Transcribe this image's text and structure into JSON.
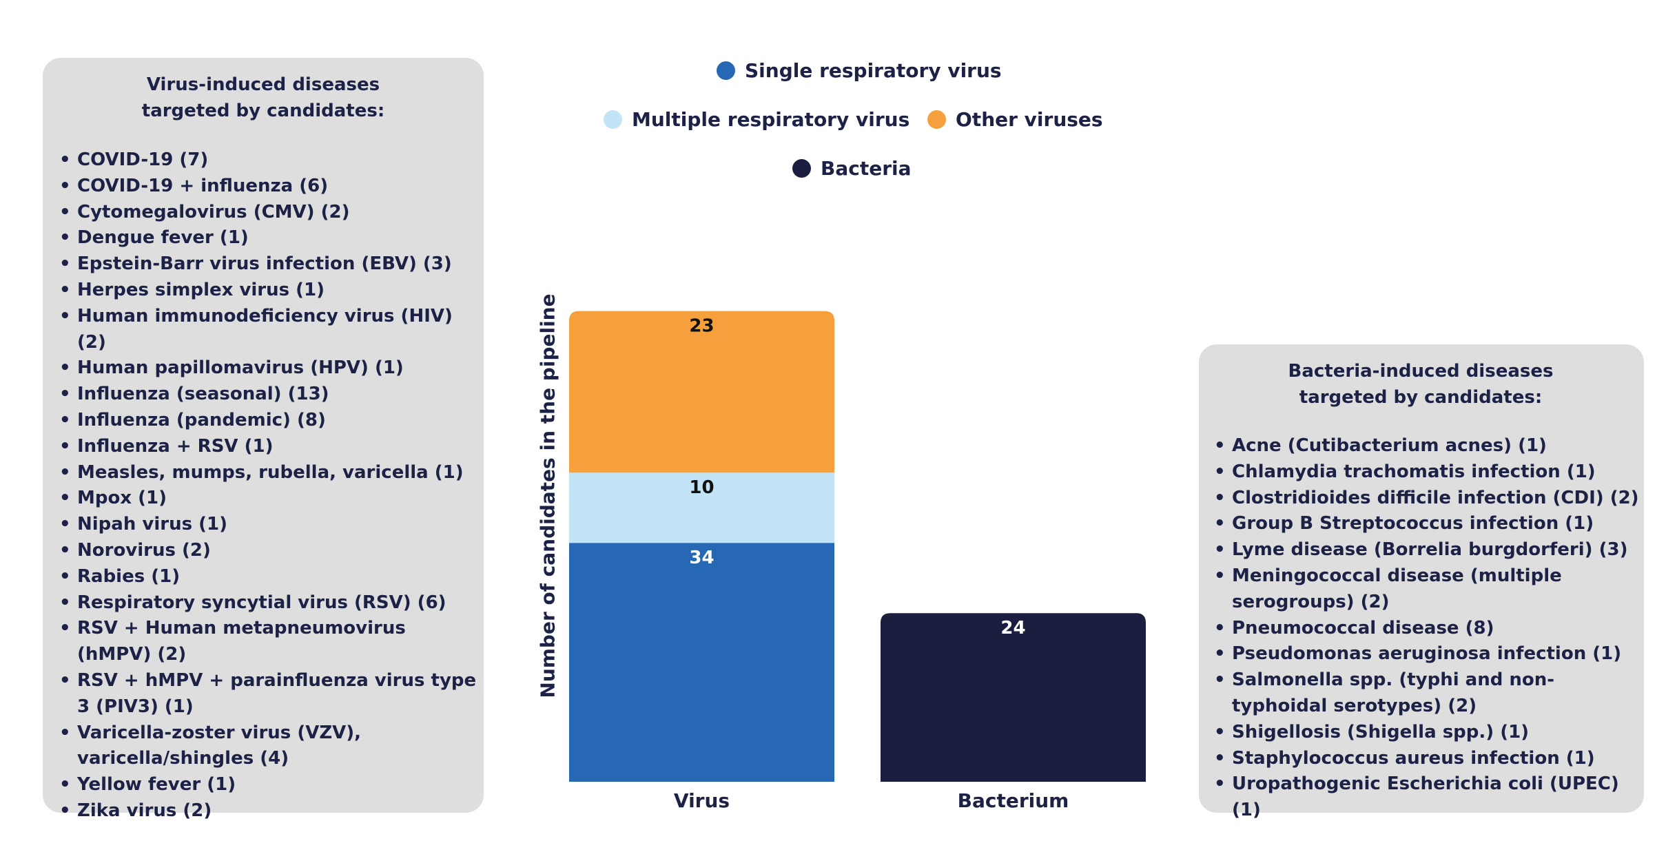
{
  "left_panel": {
    "title_line1": "Virus-induced diseases",
    "title_line2": "targeted by candidates:",
    "items": [
      "COVID-19 (7)",
      "COVID-19 + influenza (6)",
      "Cytomegalovirus (CMV) (2)",
      "Dengue fever (1)",
      "Epstein-Barr virus infection (EBV) (3)",
      "Herpes simplex virus (1)",
      "Human immunodeficiency virus (HIV) (2)",
      "Human papillomavirus (HPV) (1)",
      "Influenza (seasonal) (13)",
      "Influenza (pandemic) (8)",
      "Influenza + RSV (1)",
      "Measles, mumps, rubella, varicella (1)",
      "Mpox (1)",
      "Nipah virus (1)",
      "Norovirus (2)",
      "Rabies (1)",
      "Respiratory syncytial virus (RSV) (6)",
      "RSV + Human metapneumovirus (hMPV) (2)",
      "RSV + hMPV + parainfluenza virus type 3 (PIV3) (1)",
      "Varicella-zoster virus (VZV), varicella/shingles (4)",
      "Yellow fever (1)",
      "Zika virus (2)"
    ]
  },
  "right_panel": {
    "title_line1": "Bacteria-induced diseases",
    "title_line2": "targeted by candidates:",
    "items": [
      "Acne (Cutibacterium acnes) (1)",
      "Chlamydia trachomatis infection (1)",
      "Clostridioides difficile infection (CDI) (2)",
      "Group B Streptococcus infection (1)",
      "Lyme disease (Borrelia burgdorferi) (3)",
      "Meningococcal disease (multiple serogroups) (2)",
      "Pneumococcal disease (8)",
      "Pseudomonas aeruginosa infection (1)",
      "Salmonella spp. (typhi and non-typhoidal serotypes) (2)",
      "Shigellosis (Shigella spp.) (1)",
      "Staphylococcus aureus infection (1)",
      "Uropathogenic Escherichia coli (UPEC) (1)"
    ]
  },
  "legend": [
    {
      "label": "Single respiratory virus",
      "color": "#2668b4"
    },
    {
      "label": "Multiple respiratory virus",
      "color": "#c3e3f6"
    },
    {
      "label": "Other viruses",
      "color": "#f5a03d"
    },
    {
      "label": "Bacteria",
      "color": "#1b1e3f"
    }
  ],
  "chart_data": {
    "type": "bar",
    "stacked": true,
    "categories": [
      "Virus",
      "Bacterium"
    ],
    "ylabel": "Number of candidates in the pipeline",
    "series": [
      {
        "name": "Single respiratory virus",
        "values": [
          34,
          0
        ],
        "color": "#2668b4",
        "label_color": "#ffffff"
      },
      {
        "name": "Multiple respiratory virus",
        "values": [
          10,
          0
        ],
        "color": "#c3e3f6",
        "label_color": "#111111"
      },
      {
        "name": "Other viruses",
        "values": [
          23,
          0
        ],
        "color": "#f5a03d",
        "label_color": "#111111"
      },
      {
        "name": "Bacteria",
        "values": [
          0,
          24
        ],
        "color": "#1b1e3f",
        "label_color": "#ffffff"
      }
    ],
    "ylim": [
      0,
      67
    ],
    "grid": false,
    "legend_position": "top"
  }
}
